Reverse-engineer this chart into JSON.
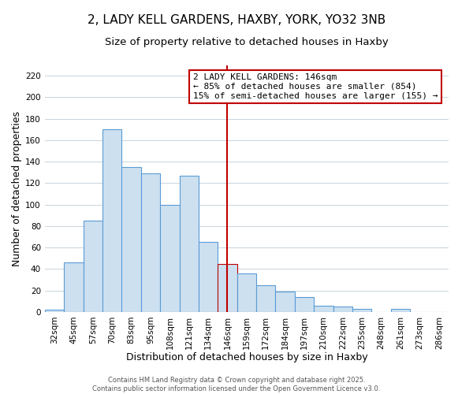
{
  "title": "2, LADY KELL GARDENS, HAXBY, YORK, YO32 3NB",
  "subtitle": "Size of property relative to detached houses in Haxby",
  "xlabel": "Distribution of detached houses by size in Haxby",
  "ylabel": "Number of detached properties",
  "bin_labels": [
    "32sqm",
    "45sqm",
    "57sqm",
    "70sqm",
    "83sqm",
    "95sqm",
    "108sqm",
    "121sqm",
    "134sqm",
    "146sqm",
    "159sqm",
    "172sqm",
    "184sqm",
    "197sqm",
    "210sqm",
    "222sqm",
    "235sqm",
    "248sqm",
    "261sqm",
    "273sqm",
    "286sqm"
  ],
  "bar_values": [
    2,
    46,
    85,
    170,
    135,
    129,
    100,
    127,
    65,
    45,
    36,
    25,
    19,
    14,
    6,
    5,
    3,
    0,
    3,
    0,
    0
  ],
  "bar_color": "#cce0f0",
  "bar_edgecolor": "#5b9bd5",
  "highlight_index": 9,
  "highlight_edgecolor": "#c00000",
  "vline_x_index": 9,
  "vline_color": "#c00000",
  "ylim": [
    0,
    230
  ],
  "yticks": [
    0,
    20,
    40,
    60,
    80,
    100,
    120,
    140,
    160,
    180,
    200,
    220
  ],
  "annotation_title": "2 LADY KELL GARDENS: 146sqm",
  "annotation_line1": "← 85% of detached houses are smaller (854)",
  "annotation_line2": "15% of semi-detached houses are larger (155) →",
  "footer_line1": "Contains HM Land Registry data © Crown copyright and database right 2025.",
  "footer_line2": "Contains public sector information licensed under the Open Government Licence v3.0.",
  "background_color": "#ffffff",
  "grid_color": "#c8d4dc",
  "title_fontsize": 11,
  "subtitle_fontsize": 9.5,
  "axis_fontsize": 9,
  "tick_fontsize": 7.5,
  "annotation_fontsize": 8,
  "footer_fontsize": 6,
  "annotation_box_edgecolor": "#c00000",
  "annotation_box_facecolor": "#ffffff"
}
